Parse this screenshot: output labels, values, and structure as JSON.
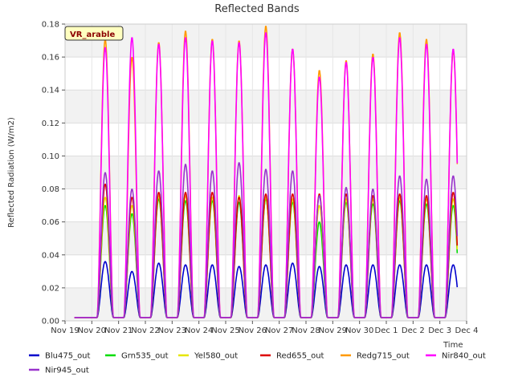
{
  "chart_data": {
    "type": "line",
    "title": "Reflected Bands",
    "xlabel": "Time",
    "ylabel": "Reflected Radiation (W/m2)",
    "badge": "VR_arable",
    "ylim": [
      0,
      0.18
    ],
    "xlim": [
      0,
      15
    ],
    "y_ticks": [
      "0.00",
      "0.02",
      "0.04",
      "0.06",
      "0.08",
      "0.10",
      "0.12",
      "0.14",
      "0.16",
      "0.18"
    ],
    "x_ticks": [
      "Nov 19",
      "Nov 20",
      "Nov 21",
      "Nov 22",
      "Nov 23",
      "Nov 24",
      "Nov 25",
      "Nov 26",
      "Nov 27",
      "Nov 28",
      "Nov 29",
      "Nov 30",
      "Dec 1",
      "Dec 2",
      "Dec 3",
      "Dec 4"
    ],
    "grid": true,
    "legend_position": "bottom",
    "days": [
      "Nov 20",
      "Nov 21",
      "Nov 22",
      "Nov 23",
      "Nov 24",
      "Nov 25",
      "Nov 26",
      "Nov 27",
      "Nov 28",
      "Nov 29",
      "Nov 30",
      "Dec 1",
      "Dec 2",
      "Dec 3"
    ],
    "baseline": 0.002,
    "series": [
      {
        "name": "Blu475_out",
        "color": "#0000cc",
        "daily_peak": [
          0.036,
          0.03,
          0.035,
          0.034,
          0.034,
          0.033,
          0.034,
          0.035,
          0.033,
          0.034,
          0.034,
          0.034,
          0.034,
          0.034
        ]
      },
      {
        "name": "Grn535_out",
        "color": "#00dd00",
        "daily_peak": [
          0.07,
          0.065,
          0.074,
          0.073,
          0.073,
          0.072,
          0.074,
          0.072,
          0.06,
          0.072,
          0.071,
          0.073,
          0.071,
          0.07
        ]
      },
      {
        "name": "Yel580_out",
        "color": "#e6e600",
        "daily_peak": [
          0.075,
          0.07,
          0.076,
          0.076,
          0.075,
          0.076,
          0.075,
          0.074,
          0.07,
          0.074,
          0.074,
          0.075,
          0.074,
          0.074
        ]
      },
      {
        "name": "Red655_out",
        "color": "#dd0000",
        "daily_peak": [
          0.083,
          0.075,
          0.078,
          0.078,
          0.078,
          0.075,
          0.077,
          0.077,
          0.077,
          0.077,
          0.076,
          0.077,
          0.076,
          0.078
        ]
      },
      {
        "name": "Redg715_out",
        "color": "#ff9900",
        "daily_peak": [
          0.171,
          0.16,
          0.169,
          0.176,
          0.171,
          0.17,
          0.179,
          0.165,
          0.152,
          0.158,
          0.162,
          0.175,
          0.171,
          0.164
        ]
      },
      {
        "name": "Nir840_out",
        "color": "#ff00ff",
        "daily_peak": [
          0.166,
          0.172,
          0.168,
          0.172,
          0.17,
          0.169,
          0.175,
          0.165,
          0.148,
          0.157,
          0.16,
          0.172,
          0.168,
          0.165
        ]
      },
      {
        "name": "Nir945_out",
        "color": "#9933cc",
        "daily_peak": [
          0.09,
          0.08,
          0.091,
          0.095,
          0.091,
          0.096,
          0.092,
          0.091,
          0.076,
          0.081,
          0.08,
          0.088,
          0.086,
          0.088
        ]
      }
    ]
  }
}
